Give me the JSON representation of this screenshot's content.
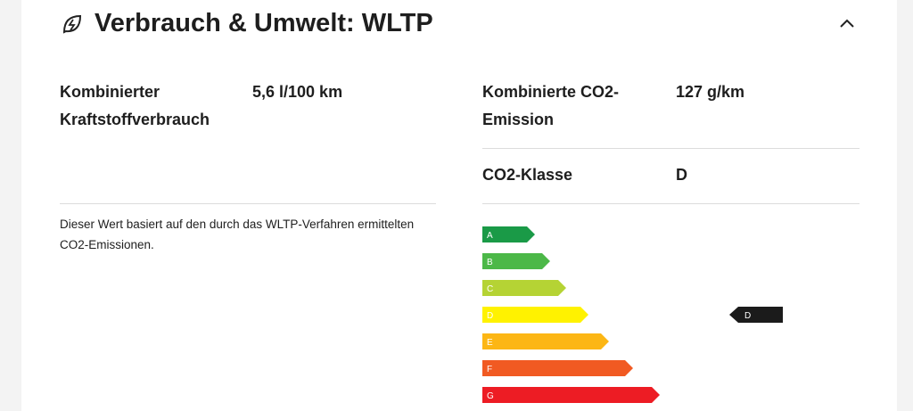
{
  "header": {
    "title": "Verbrauch & Umwelt: WLTP"
  },
  "left": {
    "rows": [
      {
        "label": "Kombinierter Kraftstoffverbrauch",
        "value": "5,6 l/100 km"
      }
    ],
    "note": "Dieser Wert basiert auf den durch das WLTP-Verfahren ermittelten CO2-Emissionen."
  },
  "right": {
    "rows": [
      {
        "label": "Kombinierte CO2-Emission",
        "value": "127 g/km"
      },
      {
        "label": "CO2-Klasse",
        "value": "D"
      }
    ]
  },
  "energy_label": {
    "classes": [
      {
        "label": "A",
        "color": "#1a9a47"
      },
      {
        "label": "B",
        "color": "#4cb848"
      },
      {
        "label": "C",
        "color": "#b5d334"
      },
      {
        "label": "D",
        "color": "#fff200"
      },
      {
        "label": "E",
        "color": "#fcb614"
      },
      {
        "label": "F",
        "color": "#f15a22"
      },
      {
        "label": "G",
        "color": "#ed1c24"
      }
    ],
    "current": "D"
  }
}
